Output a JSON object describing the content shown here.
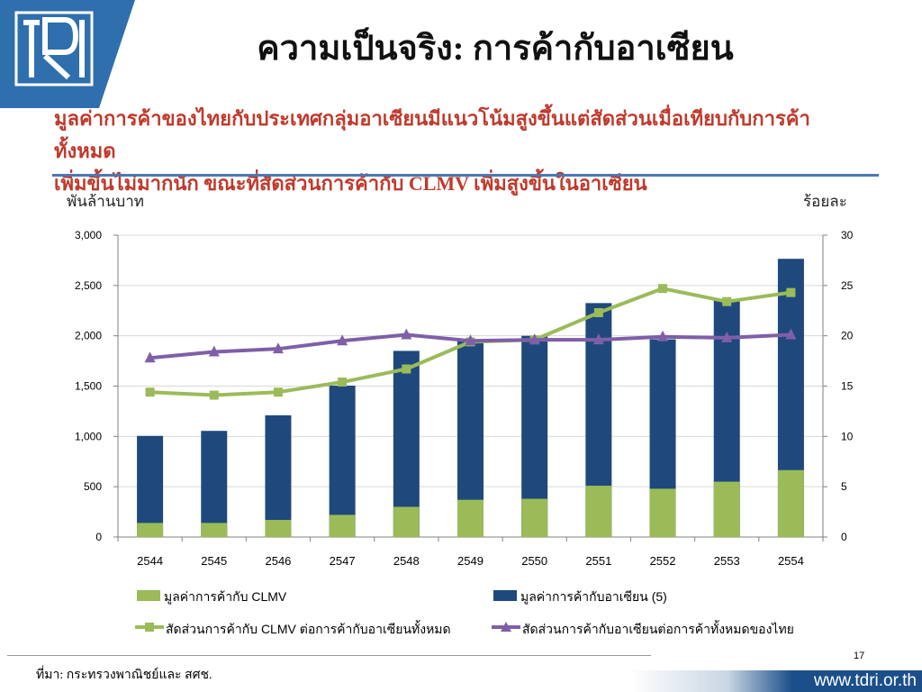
{
  "header": {
    "title": "ความเป็นจริง: การค้ากับอาเซียน",
    "subtitle_line1": "มูลค่าการค้าของไทยกับประเทศกลุ่มอาเซียนมีแนวโน้มสูงขึ้นแต่สัดส่วนเมื่อเทียบกับการค้าทั้งหมด",
    "subtitle_line2": "เพิ่มขึ้นไม่มากนัก ขณะที่สัดส่วนการค้ากับ CLMV เพิ่มสูงขึ้นในอาเซียน"
  },
  "axis_units": {
    "left": "พันล้านบาท",
    "right": "ร้อยละ"
  },
  "chart_data": {
    "type": "bar",
    "categories": [
      "2544",
      "2545",
      "2546",
      "2547",
      "2548",
      "2549",
      "2550",
      "2551",
      "2552",
      "2553",
      "2554"
    ],
    "ylim_left": [
      0,
      3000
    ],
    "ylim_right": [
      0,
      30
    ],
    "yticks_left": [
      "0",
      "500",
      "1,000",
      "1,500",
      "2,000",
      "2,500",
      "3,000"
    ],
    "yticks_right": [
      "0",
      "5",
      "10",
      "15",
      "20",
      "25",
      "30"
    ],
    "grid": true,
    "legend_position": "bottom",
    "series": [
      {
        "name": "มูลค่าการค้ากับ CLMV",
        "kind": "bar",
        "axis": "left",
        "color": "#9bbb59",
        "values": [
          140,
          140,
          170,
          220,
          300,
          370,
          380,
          510,
          480,
          550,
          665
        ]
      },
      {
        "name": "มูลค่าการค้ากับอาเซียน (5)",
        "kind": "bar",
        "axis": "left",
        "color": "#1f497d",
        "values": [
          1005,
          1055,
          1210,
          1505,
          1850,
          1960,
          2000,
          2325,
          1965,
          2350,
          2765
        ]
      },
      {
        "name": "สัดส่วนการค้ากับ CLMV ต่อการค้ากับอาเซียนทั้งหมด",
        "kind": "line",
        "axis": "right",
        "color": "#9bbb59",
        "marker": "square",
        "values": [
          14.4,
          14.1,
          14.4,
          15.4,
          16.7,
          19.4,
          19.6,
          22.3,
          24.7,
          23.4,
          24.3
        ]
      },
      {
        "name": "สัดส่วนการค้ากับอาเซียนต่อการค้าทั้งหมดของไทย",
        "kind": "line",
        "axis": "right",
        "color": "#7f5fa8",
        "marker": "triangle",
        "values": [
          17.8,
          18.4,
          18.7,
          19.5,
          20.1,
          19.5,
          19.6,
          19.6,
          19.9,
          19.8,
          20.1
        ]
      }
    ]
  },
  "footer": {
    "source": "ที่มา: กระทรวงพาณิชย์และ สศช.",
    "page_number": "17",
    "url": "www.tdri.or.th"
  }
}
